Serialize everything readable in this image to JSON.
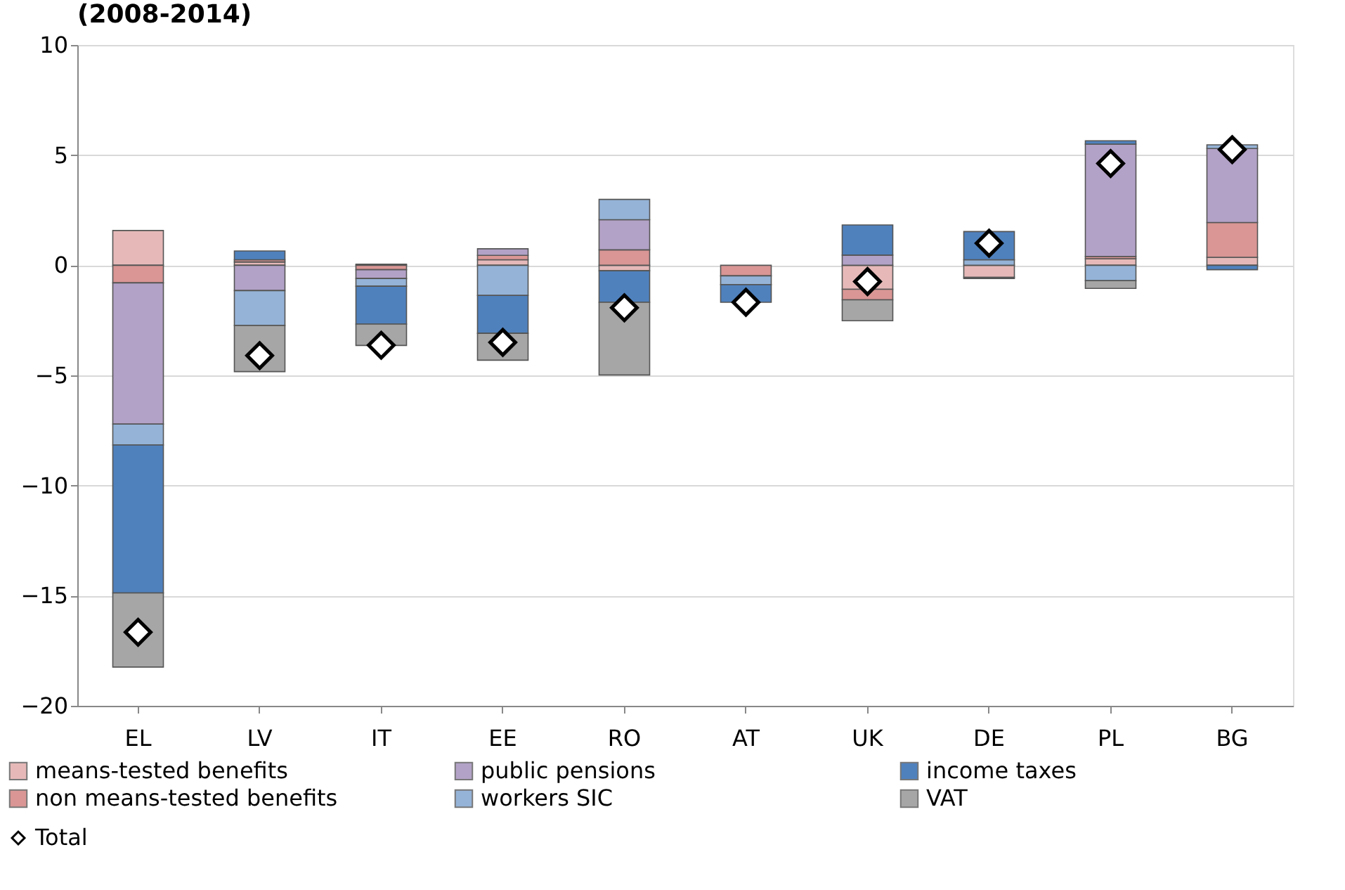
{
  "chart_data": {
    "type": "bar",
    "title": "(2008-2014)",
    "stacked": true,
    "categories": [
      "EL",
      "LV",
      "IT",
      "EE",
      "RO",
      "AT",
      "UK",
      "DE",
      "PL",
      "BG"
    ],
    "series": [
      {
        "name": "means-tested benefits",
        "color": "#e6b9b8",
        "values": [
          1.58,
          0.15,
          0.05,
          0.25,
          -0.25,
          0,
          -1.09,
          -0.55,
          0.3,
          0.36
        ]
      },
      {
        "name": "non means-tested benefits",
        "color": "#d99694",
        "values": [
          -0.8,
          0.1,
          -0.2,
          0.2,
          0.7,
          -0.48,
          -0.48,
          -0.05,
          0.1,
          1.58
        ]
      },
      {
        "name": "public pensions",
        "color": "#b3a2c7",
        "values": [
          -6.41,
          -1.15,
          -0.4,
          0.3,
          1.37,
          0,
          0.46,
          0,
          5.1,
          3.36
        ]
      },
      {
        "name": "workers SIC",
        "color": "#95b3d7",
        "values": [
          -0.95,
          -1.58,
          -0.35,
          -1.37,
          0.92,
          -0.4,
          0,
          0.25,
          -0.7,
          0.17
        ]
      },
      {
        "name": "income taxes",
        "color": "#4f81bd",
        "values": [
          -6.72,
          0.4,
          -1.72,
          -1.72,
          -1.43,
          -0.8,
          1.37,
          1.28,
          0.15,
          -0.2
        ]
      },
      {
        "name": "VAT",
        "color": "#a6a6a6",
        "values": [
          -3.36,
          -2.1,
          -0.97,
          -1.22,
          -3.3,
          0,
          -0.95,
          0,
          -0.35,
          0
        ]
      },
      {
        "name": "Total",
        "type": "scatter",
        "color": "#ffffff",
        "values": [
          -16.66,
          -4.1,
          -3.63,
          -3.5,
          -1.93,
          -1.68,
          -0.74,
          1.0,
          4.62,
          5.25
        ]
      }
    ],
    "ylim": [
      -20,
      10
    ],
    "yticks": [
      -20,
      -15,
      -10,
      -5,
      0,
      5,
      10
    ],
    "grid": "y",
    "legend": "bottom",
    "marker": "diamond"
  }
}
